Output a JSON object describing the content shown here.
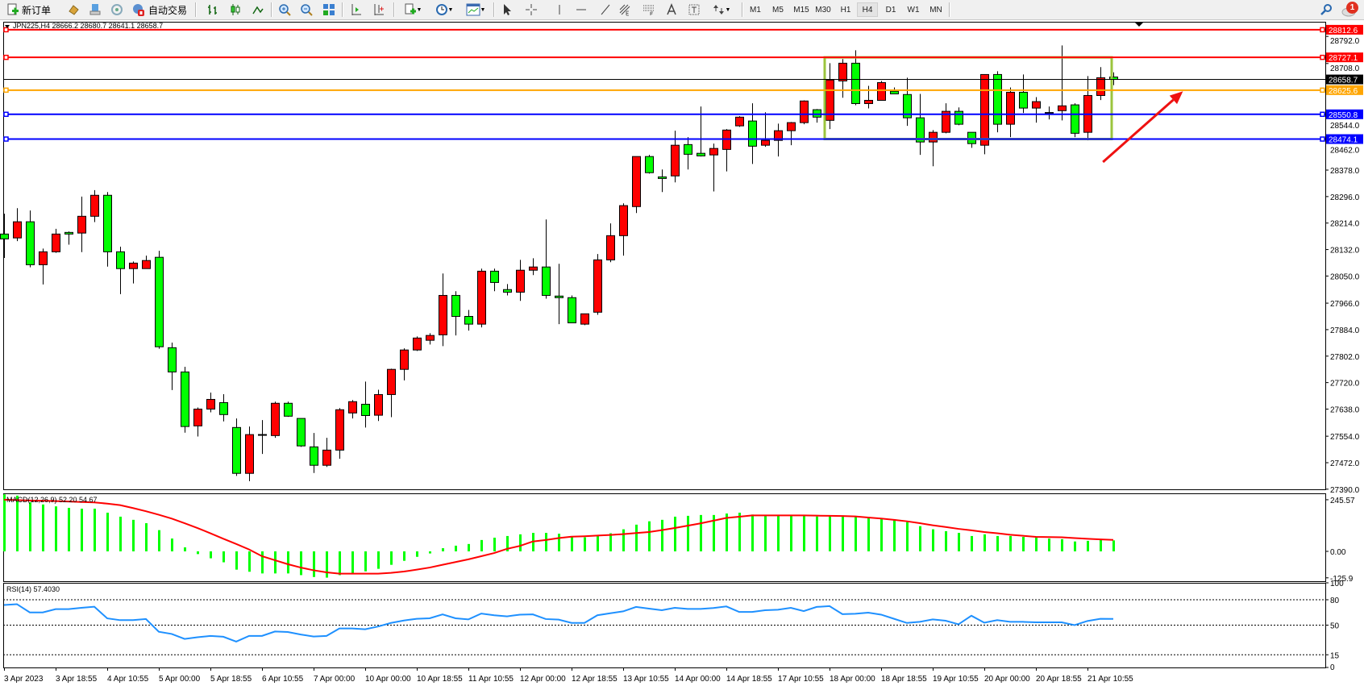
{
  "toolbar": {
    "new_order_label": "新订单",
    "auto_trading_label": "自动交易",
    "timeframes": [
      "M1",
      "M5",
      "M15",
      "M30",
      "H1",
      "H4",
      "D1",
      "W1",
      "MN"
    ],
    "active_timeframe": "H4",
    "notification_count": "1",
    "icons": [
      "new-order-icon",
      "market-watch-icon",
      "terminal-icon",
      "signals-icon",
      "auto-trading-icon",
      "bar-chart-icon",
      "candlestick-icon",
      "line-chart-icon",
      "zoom-in-icon",
      "zoom-out-icon",
      "tile-windows-icon",
      "chart-shift-icon",
      "auto-scroll-icon",
      "indicators-icon",
      "periods-icon",
      "templates-icon",
      "cursor-icon",
      "crosshair-icon",
      "vertical-line-icon",
      "horizontal-line-icon",
      "trendline-icon",
      "fibo-expansion-icon",
      "fibo-retracement-icon",
      "text-icon",
      "text-label-icon",
      "arrows-icon",
      "search-icon",
      "notification-icon"
    ]
  },
  "colors": {
    "bull_candle": "#ff0000",
    "bear_candle": "#00ff00",
    "macd_histogram": "#00ff00",
    "macd_signal": "#ff0000",
    "rsi_line": "#1e90ff",
    "rectangle": "#9bc53d",
    "arrow": "#ee1111"
  },
  "chart_data": [
    {
      "type": "candlestick",
      "title": "JPN225,H4  28666.2 28680.7 28641.1 28658.7",
      "ylim": [
        27389.6,
        28837.3
      ],
      "y_ticks": [
        28792.0,
        28708.0,
        28544.0,
        28462.0,
        28378.0,
        28296.0,
        28214.0,
        28132.0,
        28050.0,
        27966.0,
        27884.0,
        27802.0,
        27720.0,
        27638.0,
        27554.0,
        27472.0,
        27390.0
      ],
      "x_labels": [
        "3 Apr 2023",
        "3 Apr 18:55",
        "4 Apr 10:55",
        "5 Apr 00:00",
        "5 Apr 18:55",
        "6 Apr 10:55",
        "7 Apr 00:00",
        "10 Apr 00:00",
        "10 Apr 18:55",
        "11 Apr 10:55",
        "12 Apr 00:00",
        "12 Apr 18:55",
        "13 Apr 10:55",
        "14 Apr 00:00",
        "14 Apr 18:55",
        "17 Apr 10:55",
        "18 Apr 00:00",
        "18 Apr 18:55",
        "19 Apr 10:55",
        "20 Apr 00:00",
        "20 Apr 18:55",
        "21 Apr 10:55"
      ],
      "x_label_every_bars": 4,
      "ohlc_fields": [
        "open",
        "high",
        "low",
        "close"
      ],
      "ohlc": [
        [
          28180,
          28243,
          28106,
          28165
        ],
        [
          28168,
          28260,
          28158,
          28218
        ],
        [
          28218,
          28253,
          28077,
          28085
        ],
        [
          28085,
          28135,
          28024,
          28125
        ],
        [
          28125,
          28196,
          28122,
          28180
        ],
        [
          28185,
          28188,
          28147,
          28180
        ],
        [
          28183,
          28296,
          28124,
          28235
        ],
        [
          28235,
          28316,
          28217,
          28300
        ],
        [
          28300,
          28310,
          28079,
          28125
        ],
        [
          28125,
          28141,
          27994,
          28073
        ],
        [
          28073,
          28095,
          28027,
          28090
        ],
        [
          28073,
          28113,
          28073,
          28098
        ],
        [
          28108,
          28128,
          27825,
          27831
        ],
        [
          27828,
          27844,
          27697,
          27753
        ],
        [
          27753,
          27769,
          27565,
          27584
        ],
        [
          27586,
          27643,
          27553,
          27638
        ],
        [
          27638,
          27689,
          27628,
          27668
        ],
        [
          27658,
          27684,
          27600,
          27621
        ],
        [
          27581,
          27609,
          27431,
          27439
        ],
        [
          27439,
          27584,
          27415,
          27559
        ],
        [
          27558,
          27604,
          27499,
          27558
        ],
        [
          27556,
          27661,
          27549,
          27656
        ],
        [
          27656,
          27661,
          27614,
          27616
        ],
        [
          27609,
          27609,
          27521,
          27524
        ],
        [
          27521,
          27564,
          27440,
          27464
        ],
        [
          27464,
          27549,
          27459,
          27511
        ],
        [
          27511,
          27641,
          27484,
          27636
        ],
        [
          27626,
          27666,
          27609,
          27661
        ],
        [
          27653,
          27723,
          27581,
          27618
        ],
        [
          27619,
          27698,
          27601,
          27683
        ],
        [
          27683,
          27763,
          27613,
          27761
        ],
        [
          27761,
          27826,
          27727,
          27821
        ],
        [
          27821,
          27863,
          27818,
          27858
        ],
        [
          27851,
          27873,
          27838,
          27866
        ],
        [
          27868,
          28058,
          27833,
          27990
        ],
        [
          27990,
          28003,
          27866,
          27925
        ],
        [
          27925,
          27945,
          27881,
          27901
        ],
        [
          27901,
          28073,
          27891,
          28065
        ],
        [
          28065,
          28073,
          28003,
          28030
        ],
        [
          28008,
          28025,
          27990,
          28000
        ],
        [
          28000,
          28100,
          27973,
          28068
        ],
        [
          28068,
          28105,
          28053,
          28078
        ],
        [
          28078,
          28225,
          27980,
          27990
        ],
        [
          27988,
          28088,
          27901,
          27983
        ],
        [
          27983,
          27990,
          27905,
          27905
        ],
        [
          27901,
          27933,
          27898,
          27933
        ],
        [
          27938,
          28118,
          27930,
          28100
        ],
        [
          28100,
          28213,
          28093,
          28175
        ],
        [
          28175,
          28275,
          28113,
          28268
        ],
        [
          28265,
          28420,
          28245,
          28420
        ],
        [
          28420,
          28425,
          28367,
          28370
        ],
        [
          28357,
          28380,
          28310,
          28352
        ],
        [
          28360,
          28500,
          28340,
          28455
        ],
        [
          28457,
          28480,
          28380,
          28427
        ],
        [
          28430,
          28575,
          28420,
          28422
        ],
        [
          28425,
          28460,
          28312,
          28445
        ],
        [
          28442,
          28505,
          28374,
          28502
        ],
        [
          28515,
          28545,
          28512,
          28542
        ],
        [
          28530,
          28585,
          28397,
          28452
        ],
        [
          28455,
          28557,
          28450,
          28470
        ],
        [
          28470,
          28522,
          28420,
          28500
        ],
        [
          28500,
          28527,
          28455,
          28525
        ],
        [
          28525,
          28594,
          28520,
          28592
        ],
        [
          28565,
          28567,
          28525,
          28542
        ],
        [
          28532,
          28709,
          28505,
          28657
        ],
        [
          28654,
          28722,
          28602,
          28709
        ],
        [
          28709,
          28749,
          28579,
          28584
        ],
        [
          28584,
          28639,
          28569,
          28594
        ],
        [
          28594,
          28654,
          28594,
          28649
        ],
        [
          28622,
          28634,
          28614,
          28614
        ],
        [
          28612,
          28664,
          28515,
          28540
        ],
        [
          28540,
          28614,
          28425,
          28465
        ],
        [
          28465,
          28502,
          28390,
          28495
        ],
        [
          28495,
          28585,
          28492,
          28560
        ],
        [
          28560,
          28572,
          28517,
          28520
        ],
        [
          28495,
          28495,
          28447,
          28460
        ],
        [
          28455,
          28674,
          28427,
          28674
        ],
        [
          28674,
          28684,
          28495,
          28520
        ],
        [
          28520,
          28634,
          28480,
          28619
        ],
        [
          28619,
          28674,
          28555,
          28570
        ],
        [
          28570,
          28604,
          28525,
          28590
        ],
        [
          28555,
          28575,
          28535,
          28553
        ],
        [
          28562,
          28764,
          28532,
          28577
        ],
        [
          28580,
          28585,
          28480,
          28492
        ],
        [
          28495,
          28669,
          28470,
          28609
        ],
        [
          28609,
          28697,
          28595,
          28664
        ],
        [
          28666.2,
          28680.7,
          28641.1,
          28658.7
        ]
      ],
      "current_price": {
        "value": 28658.7,
        "label": "28658.7",
        "color": "#000000"
      },
      "horizontal_lines": [
        {
          "value": 28812.6,
          "label": "28812.6",
          "color": "#ff0000"
        },
        {
          "value": 28727.1,
          "label": "28727.1",
          "color": "#ff0000"
        },
        {
          "value": 28625.6,
          "label": "28625.6",
          "color": "#ffa500"
        },
        {
          "value": 28550.8,
          "label": "28550.8",
          "color": "#0000ff"
        },
        {
          "value": 28474.1,
          "label": "28474.1",
          "color": "#0000ff"
        }
      ],
      "rectangle": {
        "from_bar": 64,
        "to_bar": 86,
        "top": 28727.1,
        "bottom": 28474.1
      },
      "arrow": {
        "from_bar": 85.2,
        "from_price": 28403,
        "to_bar": 91.4,
        "to_price": 28622
      }
    },
    {
      "type": "bar",
      "title": "MACD(12,26,9) 52.20 54.67",
      "ylim": [
        -142,
        276
      ],
      "y_ticks": [
        245.57,
        0.0,
        -125.9
      ],
      "y_tick_labels": [
        "245.57",
        "0.00",
        "-125.9"
      ],
      "histogram": [
        271,
        265,
        233,
        223,
        214,
        207,
        203,
        203,
        184,
        165,
        150,
        134,
        101,
        61,
        19,
        -13,
        -33,
        -52,
        -87,
        -97,
        -105,
        -105,
        -105,
        -113,
        -122,
        -125,
        -113,
        -105,
        -95,
        -83,
        -64,
        -45,
        -26,
        -10,
        15,
        27,
        35,
        54,
        65,
        73,
        81,
        88,
        88,
        84,
        69,
        67,
        73,
        86,
        105,
        127,
        143,
        150,
        165,
        169,
        173,
        173,
        180,
        184,
        175,
        171,
        171,
        171,
        171,
        166,
        171,
        171,
        166,
        162,
        157,
        150,
        139,
        120,
        105,
        96,
        88,
        73,
        81,
        73,
        73,
        69,
        65,
        61,
        58,
        47,
        50,
        54,
        52.2
      ],
      "signal": [
        246,
        244,
        242,
        241,
        239,
        237,
        235,
        233,
        227,
        220,
        206,
        191,
        174,
        156,
        134,
        111,
        86,
        60,
        35,
        9,
        -23,
        -42,
        -61,
        -77,
        -90,
        -100,
        -106,
        -106,
        -106,
        -106,
        -102,
        -96,
        -87,
        -77,
        -64,
        -51,
        -38,
        -23,
        -8,
        12,
        26,
        47,
        54,
        63,
        70,
        72,
        75,
        78,
        82,
        87,
        92,
        101,
        111,
        122,
        133,
        146,
        159,
        165,
        171,
        171,
        171,
        171,
        171,
        170,
        169,
        168,
        166,
        161,
        156,
        150,
        143,
        134,
        124,
        116,
        107,
        100,
        92,
        86,
        79,
        74,
        69,
        68,
        67,
        63,
        60,
        57,
        54.67
      ]
    },
    {
      "type": "line",
      "title": "RSI(14) 57.4030",
      "ylim": [
        0,
        100
      ],
      "y_ticks": [
        100,
        80,
        50,
        15,
        0
      ],
      "levels": [
        80,
        50,
        15
      ],
      "values": [
        73.8,
        74.8,
        65,
        65,
        68.9,
        68.9,
        70.5,
        71.8,
        58,
        55.9,
        55.9,
        57.2,
        42.2,
        39.6,
        33.7,
        35.7,
        37.3,
        36.3,
        30.5,
        37.3,
        37.3,
        42.5,
        41.9,
        38.9,
        36.6,
        37.3,
        46.1,
        46.1,
        45.1,
        48.4,
        52.6,
        55.5,
        57.5,
        58.1,
        62.7,
        58.1,
        56.8,
        63.7,
        61.7,
        60.4,
        62.4,
        62.7,
        57.2,
        56.5,
        52.6,
        52.6,
        61.7,
        64,
        66.3,
        71.5,
        69.5,
        67.6,
        70.5,
        69.2,
        69.2,
        70.2,
        72.1,
        65.6,
        65.6,
        67.6,
        68.2,
        70.5,
        66.6,
        71.5,
        72.5,
        63,
        63.4,
        64.7,
        62.4,
        57.5,
        52.6,
        53.9,
        56.8,
        55.2,
        51,
        61.1,
        52.9,
        55.9,
        53.9,
        53.9,
        53.3,
        53.3,
        53.3,
        50,
        54.9,
        57.5,
        57.4
      ]
    }
  ]
}
